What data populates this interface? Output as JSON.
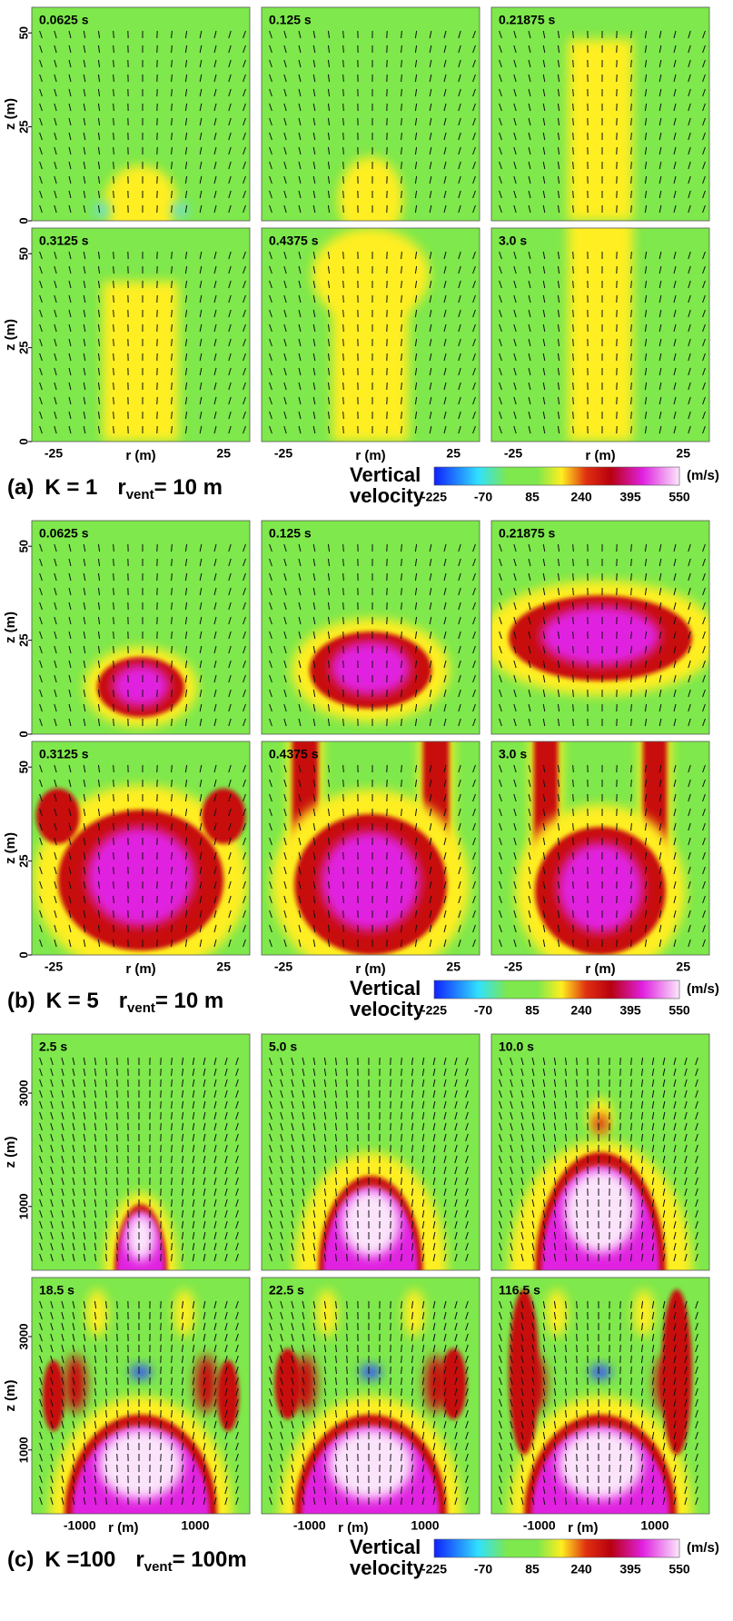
{
  "sections": [
    {
      "label": "(a)",
      "k_text": "K = 1",
      "r_symbol": "r",
      "r_subscript": "vent",
      "r_value": "= 10 m",
      "panels": [
        {
          "time": "0.0625 s"
        },
        {
          "time": "0.125 s"
        },
        {
          "time": "0.21875 s"
        },
        {
          "time": "0.3125 s"
        },
        {
          "time": "0.4375 s"
        },
        {
          "time": "3.0 s"
        }
      ],
      "z_axis_label": "z (m)",
      "z_ticks": [
        "0",
        "25",
        "50"
      ],
      "r_axis_label": "r (m)",
      "r_ticks": [
        "-25",
        "25"
      ],
      "colorbar": {
        "title_line1": "Vertical",
        "title_line2": "velocity",
        "unit": "(m/s)",
        "ticks": [
          "-225",
          "-70",
          "85",
          "240",
          "395",
          "550"
        ]
      }
    },
    {
      "label": "(b)",
      "k_text": "K = 5",
      "r_symbol": "r",
      "r_subscript": "vent",
      "r_value": "= 10 m",
      "panels": [
        {
          "time": "0.0625 s"
        },
        {
          "time": "0.125 s"
        },
        {
          "time": "0.21875 s"
        },
        {
          "time": "0.3125 s"
        },
        {
          "time": "0.4375 s"
        },
        {
          "time": "3.0 s"
        }
      ],
      "z_axis_label": "z (m)",
      "z_ticks": [
        "0",
        "25",
        "50"
      ],
      "r_axis_label": "r (m)",
      "r_ticks": [
        "-25",
        "25"
      ],
      "colorbar": {
        "title_line1": "Vertical",
        "title_line2": "velocity",
        "unit": "(m/s)",
        "ticks": [
          "-225",
          "-70",
          "85",
          "240",
          "395",
          "550"
        ]
      }
    },
    {
      "label": "(c)",
      "k_text": "K =100",
      "r_symbol": "r",
      "r_subscript": "vent",
      "r_value": "= 100m",
      "panels": [
        {
          "time": "2.5 s"
        },
        {
          "time": "5.0 s"
        },
        {
          "time": "10.0 s"
        },
        {
          "time": "18.5 s"
        },
        {
          "time": "22.5 s"
        },
        {
          "time": "116.5 s"
        }
      ],
      "z_axis_label": "z (m)",
      "z_ticks": [
        "1000",
        "3000"
      ],
      "r_axis_label": "r (m)",
      "r_ticks": [
        "-1000",
        "1000"
      ],
      "colorbar": {
        "title_line1": "Vertical",
        "title_line2": "velocity",
        "unit": "(m/s)",
        "ticks": [
          "-225",
          "-70",
          "85",
          "240",
          "395",
          "550"
        ]
      }
    }
  ]
}
